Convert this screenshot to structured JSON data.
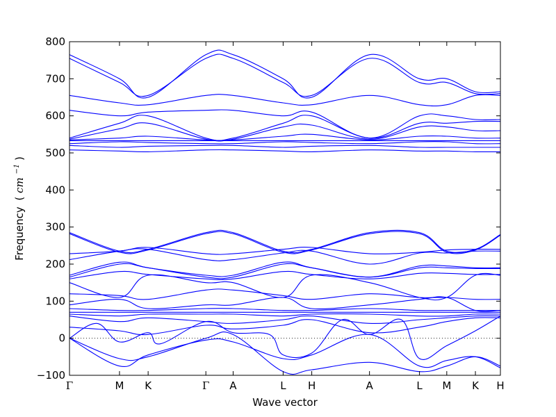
{
  "chart_data": {
    "type": "line",
    "title": "",
    "xlabel": "Wave vector",
    "ylabel": "Frequency",
    "ylabel_unit_prefix": "(",
    "ylabel_unit": "cm",
    "ylabel_unit_exp": "−1",
    "ylabel_unit_suffix": ")",
    "ylim": [
      -100,
      800
    ],
    "yticks": [
      -100,
      0,
      100,
      200,
      300,
      400,
      500,
      600,
      700,
      800
    ],
    "xlim": [
      0,
      9.48
    ],
    "zero_line": true,
    "grid": false,
    "line_color": "#0000ff",
    "high_symmetry_points": [
      {
        "label": "Γ",
        "x": 0.0
      },
      {
        "label": "M",
        "x": 1.1
      },
      {
        "label": "K",
        "x": 1.73
      },
      {
        "label": "Γ",
        "x": 3.0
      },
      {
        "label": "A",
        "x": 3.6
      },
      {
        "label": "L",
        "x": 4.7
      },
      {
        "label": "H",
        "x": 5.33
      },
      {
        "label": "A",
        "x": 6.6
      },
      {
        "label": "L",
        "x": 7.7
      },
      {
        "label": "M",
        "x": 8.3
      },
      {
        "label": "K",
        "x": 8.93
      },
      {
        "label": "H",
        "x": 9.48
      }
    ],
    "branches": [
      {
        "x": [
          0,
          1.1,
          1.73,
          3.0,
          3.6,
          4.7,
          5.33,
          6.6,
          7.7,
          8.3,
          8.93,
          9.48
        ],
        "y": [
          765,
          700,
          650,
          765,
          765,
          700,
          650,
          765,
          700,
          700,
          665,
          665
        ]
      },
      {
        "x": [
          0,
          1.1,
          1.73,
          3.0,
          3.6,
          4.7,
          5.33,
          6.6,
          7.7,
          8.3,
          8.93,
          9.48
        ],
        "y": [
          755,
          690,
          655,
          755,
          755,
          690,
          655,
          755,
          690,
          690,
          660,
          660
        ]
      },
      {
        "x": [
          0,
          1.1,
          1.73,
          3.0,
          3.6,
          4.7,
          5.33,
          6.6,
          7.7,
          8.3,
          8.93,
          9.48
        ],
        "y": [
          655,
          635,
          630,
          655,
          655,
          635,
          630,
          655,
          630,
          630,
          655,
          655
        ]
      },
      {
        "x": [
          0,
          1.1,
          1.73,
          3.0,
          3.6,
          4.7,
          5.33,
          6.6,
          7.7,
          8.3,
          8.93,
          9.48
        ],
        "y": [
          615,
          600,
          610,
          615,
          615,
          600,
          610,
          540,
          600,
          600,
          590,
          590
        ]
      },
      {
        "x": [
          0,
          1.1,
          1.73,
          3.0,
          3.6,
          4.7,
          5.33,
          6.6,
          7.7,
          8.3,
          8.93,
          9.48
        ],
        "y": [
          540,
          580,
          600,
          540,
          540,
          580,
          600,
          540,
          580,
          580,
          585,
          585
        ]
      },
      {
        "x": [
          0,
          1.1,
          1.73,
          3.0,
          3.6,
          4.7,
          5.33,
          6.6,
          7.7,
          8.3,
          8.93,
          9.48
        ],
        "y": [
          537,
          565,
          580,
          537,
          537,
          570,
          575,
          537,
          570,
          570,
          560,
          560
        ]
      },
      {
        "x": [
          0,
          1.1,
          1.73,
          3.0,
          3.6,
          4.7,
          5.33,
          6.6,
          7.7,
          8.3,
          8.93,
          9.48
        ],
        "y": [
          535,
          540,
          545,
          535,
          535,
          545,
          550,
          535,
          545,
          545,
          540,
          540
        ]
      },
      {
        "x": [
          0,
          1.1,
          1.73,
          3.0,
          3.6,
          4.7,
          5.33,
          6.6,
          7.7,
          8.3,
          8.93,
          9.48
        ],
        "y": [
          533,
          533,
          533,
          533,
          533,
          533,
          533,
          533,
          533,
          533,
          533,
          533
        ]
      },
      {
        "x": [
          0,
          1.1,
          1.73,
          3.0,
          3.6,
          4.7,
          5.33,
          6.6,
          7.7,
          8.3,
          8.93,
          9.48
        ],
        "y": [
          525,
          530,
          528,
          525,
          525,
          530,
          528,
          525,
          530,
          530,
          525,
          525
        ]
      },
      {
        "x": [
          0,
          1.1,
          1.73,
          3.0,
          3.6,
          4.7,
          5.33,
          6.6,
          7.7,
          8.3,
          8.93,
          9.48
        ],
        "y": [
          520,
          515,
          518,
          520,
          520,
          515,
          518,
          520,
          515,
          515,
          515,
          515
        ]
      },
      {
        "x": [
          0,
          1.1,
          1.73,
          3.0,
          3.6,
          4.7,
          5.33,
          6.6,
          7.7,
          8.3,
          8.93,
          9.48
        ],
        "y": [
          508,
          505,
          503,
          508,
          508,
          505,
          503,
          508,
          505,
          505,
          503,
          503
        ]
      },
      {
        "x": [
          0,
          1.1,
          1.73,
          3.0,
          3.6,
          4.7,
          5.33,
          6.6,
          7.7,
          8.3,
          8.93,
          9.48
        ],
        "y": [
          285,
          235,
          240,
          285,
          285,
          235,
          240,
          285,
          285,
          235,
          240,
          280
        ]
      },
      {
        "x": [
          0,
          1.1,
          1.73,
          3.0,
          3.6,
          4.7,
          5.33,
          6.6,
          7.7,
          8.3,
          8.93,
          9.48
        ],
        "y": [
          282,
          232,
          238,
          282,
          282,
          232,
          238,
          282,
          282,
          232,
          238,
          278
        ]
      },
      {
        "x": [
          0,
          1.1,
          1.73,
          3.0,
          3.6,
          4.7,
          5.33,
          6.6,
          7.7,
          8.3,
          8.93,
          9.48
        ],
        "y": [
          228,
          235,
          245,
          228,
          228,
          240,
          245,
          228,
          232,
          238,
          240,
          240
        ]
      },
      {
        "x": [
          0,
          1.1,
          1.73,
          3.0,
          3.6,
          4.7,
          5.33,
          6.6,
          7.7,
          8.3,
          8.93,
          9.48
        ],
        "y": [
          212,
          235,
          240,
          212,
          212,
          230,
          235,
          200,
          230,
          230,
          235,
          235
        ]
      },
      {
        "x": [
          0,
          1.1,
          1.73,
          3.0,
          3.6,
          4.7,
          5.33,
          6.6,
          7.7,
          8.3,
          8.93,
          9.48
        ],
        "y": [
          170,
          205,
          190,
          170,
          170,
          205,
          190,
          165,
          195,
          195,
          190,
          190
        ]
      },
      {
        "x": [
          0,
          1.1,
          1.73,
          3.0,
          3.6,
          4.7,
          5.33,
          6.6,
          7.7,
          8.3,
          8.93,
          9.48
        ],
        "y": [
          165,
          200,
          190,
          165,
          165,
          200,
          190,
          165,
          190,
          190,
          188,
          188
        ]
      },
      {
        "x": [
          0,
          1.1,
          1.73,
          3.0,
          3.6,
          4.7,
          5.33,
          6.6,
          7.7,
          8.3,
          8.93,
          9.48
        ],
        "y": [
          160,
          180,
          172,
          160,
          160,
          180,
          172,
          160,
          175,
          175,
          172,
          172
        ]
      },
      {
        "x": [
          0,
          1.1,
          1.73,
          3.0,
          3.6,
          4.7,
          5.33,
          6.6,
          7.7,
          8.3,
          8.93,
          9.48
        ],
        "y": [
          150,
          110,
          170,
          150,
          150,
          110,
          170,
          150,
          110,
          110,
          170,
          170
        ]
      },
      {
        "x": [
          0,
          1.1,
          1.73,
          3.0,
          3.6,
          4.7,
          5.33,
          6.6,
          7.7,
          8.3,
          8.93,
          9.48
        ],
        "y": [
          120,
          115,
          105,
          130,
          130,
          115,
          105,
          120,
          110,
          110,
          105,
          105
        ]
      },
      {
        "x": [
          0,
          1.1,
          1.73,
          3.0,
          3.6,
          4.7,
          5.33,
          6.6,
          7.7,
          8.3,
          8.93,
          9.48
        ],
        "y": [
          90,
          105,
          80,
          90,
          90,
          110,
          80,
          90,
          105,
          110,
          75,
          75
        ]
      },
      {
        "x": [
          0,
          1.1,
          1.73,
          3.0,
          3.6,
          4.7,
          5.33,
          6.6,
          7.7,
          8.3,
          8.93,
          9.48
        ],
        "y": [
          80,
          75,
          75,
          80,
          80,
          75,
          75,
          80,
          75,
          75,
          75,
          75
        ]
      },
      {
        "x": [
          0,
          1.1,
          1.73,
          3.0,
          3.6,
          4.7,
          5.33,
          6.6,
          7.7,
          8.3,
          8.93,
          9.48
        ],
        "y": [
          70,
          70,
          70,
          70,
          70,
          70,
          70,
          70,
          70,
          70,
          70,
          70
        ]
      },
      {
        "x": [
          0,
          1.1,
          1.73,
          3.0,
          3.6,
          4.7,
          5.33,
          6.6,
          7.7,
          8.3,
          8.93,
          9.48
        ],
        "y": [
          65,
          60,
          65,
          65,
          65,
          60,
          65,
          65,
          60,
          60,
          65,
          65
        ]
      },
      {
        "x": [
          0,
          1.1,
          1.73,
          3.0,
          3.6,
          4.7,
          5.33,
          6.6,
          7.7,
          8.3,
          8.93,
          9.48
        ],
        "y": [
          60,
          45,
          55,
          45,
          40,
          50,
          60,
          40,
          50,
          55,
          60,
          60
        ]
      },
      {
        "x": [
          0,
          1.1,
          1.73,
          3.0,
          3.6,
          4.7,
          5.33,
          6.6,
          7.7,
          8.3,
          8.93,
          9.48
        ],
        "y": [
          30,
          20,
          10,
          35,
          25,
          35,
          50,
          15,
          30,
          45,
          55,
          55
        ]
      },
      {
        "x": [
          0,
          0.6,
          1.1,
          1.73,
          2.0,
          3.0,
          3.6,
          4.4,
          4.7,
          5.33,
          6.0,
          6.6,
          7.3,
          7.7,
          8.3,
          8.93,
          9.48
        ],
        "y": [
          0,
          40,
          -10,
          15,
          -15,
          45,
          15,
          10,
          -45,
          -40,
          50,
          10,
          50,
          -55,
          -20,
          20,
          60
        ]
      },
      {
        "x": [
          0,
          1.1,
          1.73,
          3.0,
          3.6,
          4.7,
          5.33,
          6.6,
          7.7,
          8.3,
          8.93,
          9.48
        ],
        "y": [
          0,
          -55,
          -50,
          0,
          10,
          -90,
          -85,
          -65,
          -90,
          -75,
          -50,
          -75
        ]
      },
      {
        "x": [
          0,
          1.1,
          1.73,
          3.0,
          3.6,
          4.7,
          5.33,
          6.6,
          7.7,
          8.3,
          8.93,
          9.48
        ],
        "y": [
          0,
          -75,
          -45,
          -5,
          -10,
          -55,
          -45,
          10,
          -75,
          -60,
          -50,
          -80
        ]
      }
    ]
  }
}
